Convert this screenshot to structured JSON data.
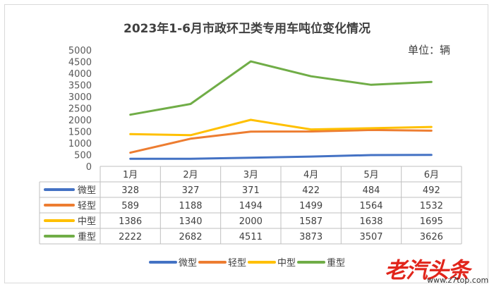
{
  "chart_data": {
    "type": "line",
    "title": "2023年1-6月市政环卫类专用车吨位变化情况",
    "unit_label": "单位：辆",
    "categories": [
      "1月",
      "2月",
      "3月",
      "4月",
      "5月",
      "6月"
    ],
    "ylim": [
      0,
      5000
    ],
    "yticks": [
      "0",
      "500",
      "1000",
      "1500",
      "2000",
      "2500",
      "3000",
      "3500",
      "4000",
      "4500",
      "5000"
    ],
    "grid": false,
    "legend_position": "bottom",
    "has_data_table": true,
    "series": [
      {
        "name": "微型",
        "color": "#4472c4",
        "values": [
          328,
          327,
          371,
          422,
          484,
          492
        ]
      },
      {
        "name": "轻型",
        "color": "#ed7d31",
        "values": [
          589,
          1188,
          1494,
          1499,
          1564,
          1532
        ]
      },
      {
        "name": "中型",
        "color": "#ffc000",
        "values": [
          1386,
          1340,
          2000,
          1587,
          1638,
          1695
        ]
      },
      {
        "name": "重型",
        "color": "#70ad47",
        "values": [
          2222,
          2682,
          4511,
          3873,
          3507,
          3626
        ]
      }
    ]
  },
  "watermark": {
    "main": "老汽头条",
    "sub": "www.z7top.com"
  }
}
